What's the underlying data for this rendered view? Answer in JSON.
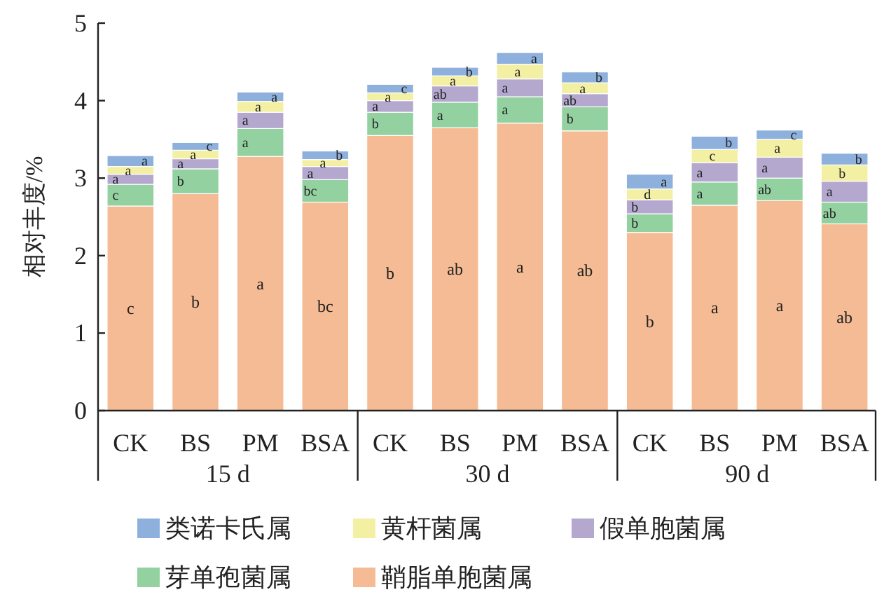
{
  "chart_data": {
    "type": "bar",
    "stacked": true,
    "ylabel": "相对丰度/%",
    "ylim": [
      0,
      5
    ],
    "yticks": [
      0,
      1,
      2,
      3,
      4,
      5
    ],
    "legend": "bottom",
    "grid": false,
    "categories": [
      "CK",
      "BS",
      "PM",
      "BSA",
      "CK",
      "BS",
      "PM",
      "BSA",
      "CK",
      "BS",
      "PM",
      "BSA"
    ],
    "annotations": [
      "15 d",
      "30 d",
      "90 d"
    ],
    "series": [
      {
        "name": "鞘脂单胞菌属",
        "color": "#f5bb94",
        "values": [
          2.64,
          2.8,
          3.28,
          2.69,
          3.55,
          3.65,
          3.71,
          3.61,
          2.3,
          2.65,
          2.71,
          2.41
        ],
        "value_labels": [
          "c",
          "b",
          "a",
          "bc",
          "b",
          "ab",
          "a",
          "ab",
          "b",
          "a",
          "a",
          "ab"
        ]
      },
      {
        "name": "芽单孢菌属",
        "color": "#93d1a0",
        "values": [
          0.28,
          0.32,
          0.36,
          0.29,
          0.3,
          0.33,
          0.34,
          0.31,
          0.24,
          0.3,
          0.29,
          0.28
        ],
        "value_labels": [
          "c",
          "b",
          "a",
          "bc",
          "b",
          "a",
          "a",
          "b",
          "b",
          "a",
          "ab",
          "ab"
        ]
      },
      {
        "name": "假单胞菌属",
        "color": "#b4a8cf",
        "values": [
          0.13,
          0.13,
          0.21,
          0.17,
          0.15,
          0.21,
          0.23,
          0.17,
          0.18,
          0.25,
          0.27,
          0.27
        ],
        "value_labels": [
          "a",
          "a",
          "a",
          "a",
          "a",
          "ab",
          "a",
          "ab",
          "b",
          "a",
          "a",
          "a"
        ]
      },
      {
        "name": "黄杆菌属",
        "color": "#f3f0a3",
        "values": [
          0.1,
          0.11,
          0.14,
          0.09,
          0.1,
          0.13,
          0.19,
          0.14,
          0.14,
          0.17,
          0.23,
          0.21
        ],
        "value_labels": [
          "a",
          "a",
          "a",
          "a",
          "a",
          "a",
          "a",
          "a",
          "d",
          "c",
          "a",
          "b"
        ]
      },
      {
        "name": "类诺卡氏属",
        "color": "#8eb0dd",
        "values": [
          0.14,
          0.1,
          0.12,
          0.11,
          0.11,
          0.11,
          0.15,
          0.14,
          0.19,
          0.17,
          0.12,
          0.15
        ],
        "value_labels": [
          "a",
          "c",
          "a",
          "b",
          "c",
          "b",
          "a",
          "b",
          "a",
          "b",
          "c",
          "b"
        ]
      }
    ]
  }
}
